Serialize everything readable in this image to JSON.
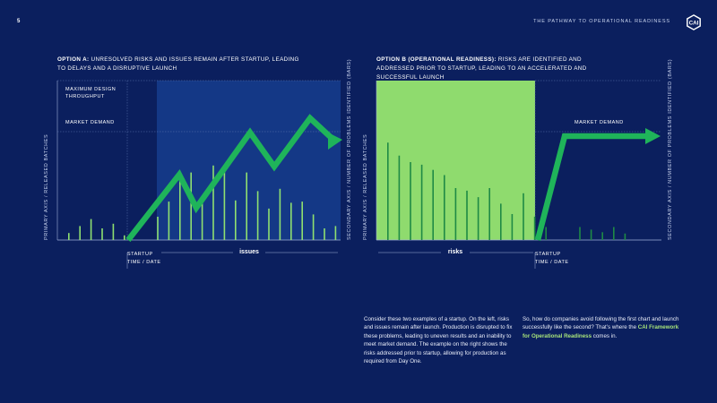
{
  "header": {
    "page_number": "5",
    "title": "THE PATHWAY TO OPERATIONAL READINESS",
    "logo_icon": "cai-logo-icon"
  },
  "colors": {
    "background": "#0b1f5e",
    "issues_region": "#143886",
    "risks_region": "#8fdb6e",
    "arrow": "#1fb45a",
    "bars": "#8fe070"
  },
  "left": {
    "title_bold": "OPTION A:",
    "title_rest": " UNRESOLVED RISKS AND ISSUES REMAIN AFTER STARTUP, LEADING TO DELAYS AND A DISRUPTIVE LAUNCH",
    "max_label": "MAXIMUM DESIGN THROUGHPUT",
    "market_label": "MARKET DEMAND",
    "startup_label": "STARTUP",
    "time_label": "TIME / DATE",
    "region_label": "issues",
    "primary_axis": "PRIMARY AXIS / RELEASED BATCHES",
    "secondary_axis": "SECONDARY AXIS / NUMBER OF PROBLEMS IDENTIFIED (BARS)"
  },
  "right": {
    "title_bold": "OPTION B (OPERATIONAL READINESS):",
    "title_rest": " RISKS ARE IDENTIFIED AND ADDRESSED PRIOR TO STARTUP, LEADING TO AN ACCELERATED AND SUCCESSFUL LAUNCH",
    "market_label": "MARKET DEMAND",
    "startup_label": "STARTUP",
    "time_label": "TIME / DATE",
    "region_label": "risks",
    "primary_axis": "PRIMARY AXIS / RELEASED BATCHES",
    "secondary_axis": "SECONDARY AXIS / NUMBER OF PROBLEMS IDENTIFIED (BARS)"
  },
  "body": {
    "col1": "Consider these two examples of a startup. On the left, risks and issues remain after launch. Production is disrupted to fix these problems, leading to uneven results and an inability to meet market demand. The example on the right shows the risks addressed prior to startup, allowing for production as required from Day One.",
    "col2_pre": "So, how do companies avoid following the first chart and launch successfully like the second? That’s where the ",
    "col2_highlight": "CAI Framework for Operational Readiness",
    "col2_post": " comes in."
  },
  "chart_data": [
    {
      "type": "bar",
      "name": "Option A",
      "bars_problems": [
        4,
        4,
        6,
        5,
        3,
        5,
        2,
        0,
        4,
        5,
        6,
        12,
        8,
        6,
        5,
        9,
        6,
        6,
        5,
        3,
        6,
        4,
        5,
        4,
        4
      ],
      "bar_positions": [
        1,
        2,
        3,
        4,
        5,
        6,
        7,
        8,
        9,
        10,
        11,
        12,
        13,
        14,
        15,
        16,
        17,
        18,
        19,
        20,
        21,
        22,
        23,
        24,
        25
      ],
      "bar_heights": [
        6,
        12,
        18,
        10,
        14,
        4,
        0,
        0,
        20,
        33,
        55,
        58,
        38,
        64,
        60,
        34,
        58,
        42,
        27,
        44,
        32,
        33,
        22,
        10,
        12
      ],
      "line_released_batches": [
        [
          6.5,
          0
        ],
        [
          10.5,
          40
        ],
        [
          12.5,
          22
        ],
        [
          17,
          75
        ],
        [
          20,
          50
        ],
        [
          23,
          86
        ],
        [
          25.5,
          70
        ]
      ],
      "regions": [
        {
          "label": "issues",
          "from": 8.5,
          "to": 26.5
        }
      ],
      "annotations": [
        "MAXIMUM DESIGN THROUGHPUT",
        "MARKET DEMAND",
        "STARTUP"
      ]
    },
    {
      "type": "bar",
      "name": "Option B",
      "bar_heights": [
        75,
        65,
        60,
        58,
        54,
        50,
        40,
        38,
        33,
        40,
        28,
        20,
        36,
        18,
        10,
        0,
        0,
        10,
        8,
        6,
        10,
        5
      ],
      "line_released_batches": [
        [
          15.5,
          0
        ],
        [
          17,
          65
        ],
        [
          25.5,
          65
        ]
      ],
      "regions": [
        {
          "label": "risks",
          "from": 0.5,
          "to": 14.5
        }
      ],
      "annotations": [
        "MARKET DEMAND",
        "STARTUP"
      ]
    }
  ]
}
